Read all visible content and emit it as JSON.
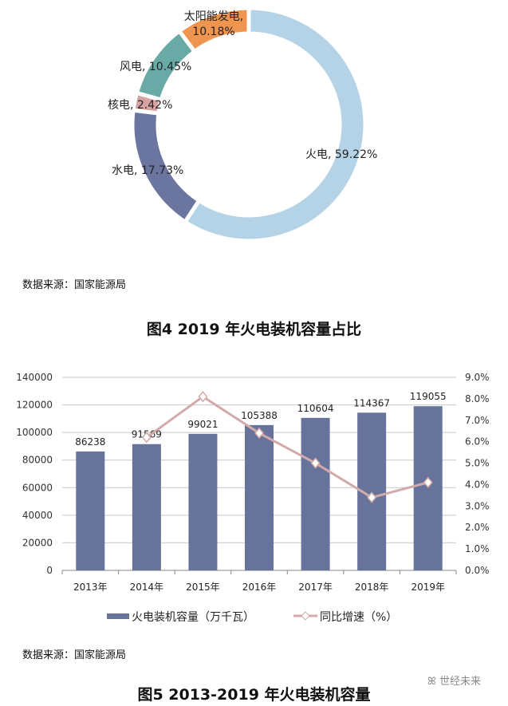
{
  "chart_data": [
    {
      "type": "pie",
      "variant": "donut",
      "caption": "图4 2019 年火电装机容量占比",
      "source": "数据来源：国家能源局",
      "slices": [
        {
          "label": "火电",
          "value": 59.22,
          "text": "火电, 59.22%",
          "color": "#b4d3e6"
        },
        {
          "label": "水电",
          "value": 17.73,
          "text": "水电, 17.73%",
          "color": "#6b76a0"
        },
        {
          "label": "核电",
          "value": 2.42,
          "text": "核电, 2.42%",
          "color": "#d6a3a3"
        },
        {
          "label": "风电",
          "value": 10.45,
          "text": "风电, 10.45%",
          "color": "#6aaaa6"
        },
        {
          "label": "太阳能发电",
          "value": 10.18,
          "text": "太阳能发电, 10.18%",
          "text_lines": [
            "太阳能发电,",
            "10.18%"
          ],
          "color": "#f0954f"
        }
      ]
    },
    {
      "type": "bar",
      "caption": "图5 2013-2019 年火电装机容量",
      "source": "数据来源：国家能源局",
      "categories": [
        "2013年",
        "2014年",
        "2015年",
        "2016年",
        "2017年",
        "2018年",
        "2019年"
      ],
      "series": [
        {
          "name": "火电装机容量（万千瓦）",
          "type": "bar",
          "axis": "left",
          "color": "#68739b",
          "values": [
            86238,
            91569,
            99021,
            105388,
            110604,
            114367,
            119055
          ]
        },
        {
          "name": "同比增速（%）",
          "type": "line",
          "axis": "right",
          "color": "#d2aaaa",
          "values": [
            null,
            6.2,
            8.1,
            6.4,
            5.0,
            3.4,
            4.1
          ]
        }
      ],
      "ylim": [
        0,
        140000
      ],
      "yticks": [
        "0",
        "20000",
        "40000",
        "60000",
        "80000",
        "100000",
        "120000",
        "140000"
      ],
      "y2lim": [
        0,
        9
      ],
      "y2ticks": [
        "0.0%",
        "1.0%",
        "2.0%",
        "3.0%",
        "4.0%",
        "5.0%",
        "6.0%",
        "7.0%",
        "8.0%",
        "9.0%"
      ],
      "grid": true,
      "legend": "bottom"
    }
  ],
  "watermark": {
    "text": "世经未来",
    "icon": "wechat-icon"
  }
}
